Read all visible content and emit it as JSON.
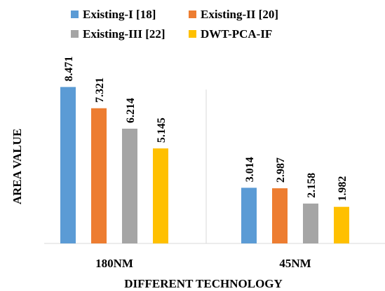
{
  "chart_data": {
    "type": "bar",
    "categories": [
      "180NM",
      "45NM"
    ],
    "series": [
      {
        "name": "Existing-I [18]",
        "color": "#5B9BD5",
        "values": [
          8.471,
          3.014
        ],
        "labels": [
          "8.471",
          "3.014"
        ]
      },
      {
        "name": "Existing-II [20]",
        "color": "#ED7D31",
        "values": [
          7.321,
          2.987
        ],
        "labels": [
          "7.321",
          "2.987"
        ]
      },
      {
        "name": "Existing-III [22]",
        "color": "#A5A5A5",
        "values": [
          6.214,
          2.158
        ],
        "labels": [
          "6.214",
          "2.158"
        ]
      },
      {
        "name": "DWT-PCA-IF",
        "color": "#FFC000",
        "values": [
          5.145,
          1.982
        ],
        "labels": [
          "5.145",
          "1.982"
        ]
      }
    ],
    "xlabel": "DIFFERENT TECHNOLOGY",
    "ylabel": "AREA VALUE",
    "ylim": [
      0,
      10
    ],
    "grid": false,
    "legend_position": "top"
  }
}
